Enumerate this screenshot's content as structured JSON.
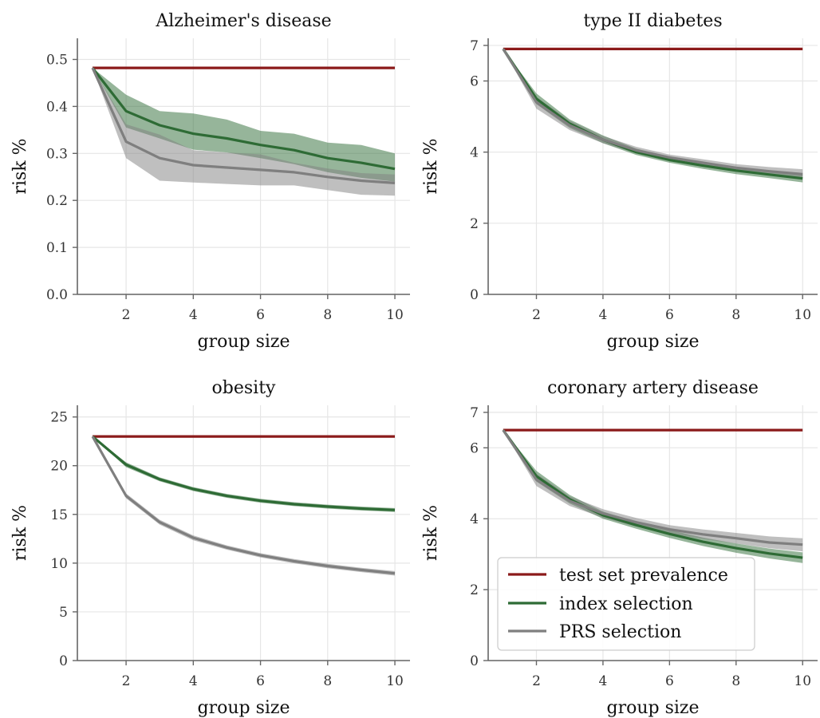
{
  "chart_data": [
    {
      "type": "line",
      "title": "Alzheimer's disease",
      "xlabel": "group size",
      "ylabel": "risk %",
      "xlim": [
        0.55,
        10.45
      ],
      "ylim": [
        0.0,
        0.545
      ],
      "xticks": [
        2,
        4,
        6,
        8,
        10
      ],
      "yticks": [
        0.0,
        0.1,
        0.2,
        0.3,
        0.4,
        0.5
      ],
      "ytick_labels": [
        "0.0",
        "0.1",
        "0.2",
        "0.3",
        "0.4",
        "0.5"
      ],
      "grid": true,
      "x": [
        1,
        2,
        3,
        4,
        5,
        6,
        7,
        8,
        9,
        10
      ],
      "series": [
        {
          "name": "test set prevalence",
          "color": "#8b1a1a",
          "values": [
            0.482,
            0.482,
            0.482,
            0.482,
            0.482,
            0.482,
            0.482,
            0.482,
            0.482,
            0.482
          ]
        },
        {
          "name": "index selection",
          "color": "#2e6b35",
          "values": [
            0.482,
            0.39,
            0.36,
            0.342,
            0.332,
            0.318,
            0.307,
            0.29,
            0.28,
            0.267
          ],
          "lower": [
            0.482,
            0.355,
            0.332,
            0.308,
            0.302,
            0.29,
            0.277,
            0.26,
            0.248,
            0.24
          ],
          "upper": [
            0.482,
            0.425,
            0.39,
            0.385,
            0.372,
            0.348,
            0.342,
            0.323,
            0.318,
            0.3
          ]
        },
        {
          "name": "PRS selection",
          "color": "#7f7f7f",
          "values": [
            0.482,
            0.325,
            0.29,
            0.275,
            0.27,
            0.265,
            0.26,
            0.25,
            0.242,
            0.237
          ],
          "lower": [
            0.482,
            0.29,
            0.242,
            0.238,
            0.235,
            0.232,
            0.232,
            0.222,
            0.212,
            0.21
          ],
          "upper": [
            0.482,
            0.362,
            0.34,
            0.307,
            0.302,
            0.298,
            0.28,
            0.268,
            0.258,
            0.255
          ]
        }
      ]
    },
    {
      "type": "line",
      "title": "type II diabetes",
      "xlabel": "group size",
      "ylabel": "risk %",
      "xlim": [
        0.55,
        10.45
      ],
      "ylim": [
        0.0,
        7.2
      ],
      "xticks": [
        2,
        4,
        6,
        8,
        10
      ],
      "yticks": [
        0,
        2,
        4,
        6,
        7
      ],
      "ytick_labels": [
        "0",
        "2",
        "4",
        "6",
        "7"
      ],
      "grid": true,
      "x": [
        1,
        2,
        3,
        4,
        5,
        6,
        7,
        8,
        9,
        10
      ],
      "series": [
        {
          "name": "test set prevalence",
          "color": "#8b1a1a",
          "values": [
            6.9,
            6.9,
            6.9,
            6.9,
            6.9,
            6.9,
            6.9,
            6.9,
            6.9,
            6.9
          ]
        },
        {
          "name": "index selection",
          "color": "#2e6b35",
          "values": [
            6.9,
            5.5,
            4.8,
            4.35,
            4.0,
            3.78,
            3.62,
            3.48,
            3.37,
            3.26
          ],
          "lower": [
            6.9,
            5.35,
            4.68,
            4.25,
            3.92,
            3.7,
            3.53,
            3.38,
            3.27,
            3.15
          ],
          "upper": [
            6.9,
            5.65,
            4.92,
            4.47,
            4.1,
            3.87,
            3.72,
            3.58,
            3.47,
            3.38
          ]
        },
        {
          "name": "PRS selection",
          "color": "#7f7f7f",
          "values": [
            6.9,
            5.4,
            4.75,
            4.35,
            4.05,
            3.85,
            3.7,
            3.56,
            3.46,
            3.38
          ],
          "lower": [
            6.9,
            5.22,
            4.62,
            4.25,
            3.97,
            3.78,
            3.63,
            3.49,
            3.39,
            3.28
          ],
          "upper": [
            6.9,
            5.55,
            4.88,
            4.45,
            4.15,
            3.93,
            3.8,
            3.66,
            3.58,
            3.52
          ]
        }
      ]
    },
    {
      "type": "line",
      "title": "obesity",
      "xlabel": "group size",
      "ylabel": "risk %",
      "xlim": [
        0.55,
        10.45
      ],
      "ylim": [
        0,
        26.2
      ],
      "xticks": [
        2,
        4,
        6,
        8,
        10
      ],
      "yticks": [
        0,
        5,
        10,
        15,
        20,
        25
      ],
      "ytick_labels": [
        "0",
        "5",
        "10",
        "15",
        "20",
        "25"
      ],
      "grid": true,
      "x": [
        1,
        2,
        3,
        4,
        5,
        6,
        7,
        8,
        9,
        10
      ],
      "series": [
        {
          "name": "test set prevalence",
          "color": "#8b1a1a",
          "values": [
            23.0,
            23.0,
            23.0,
            23.0,
            23.0,
            23.0,
            23.0,
            23.0,
            23.0,
            23.0
          ]
        },
        {
          "name": "index selection",
          "color": "#2e6b35",
          "values": [
            23.0,
            20.1,
            18.6,
            17.6,
            16.9,
            16.4,
            16.05,
            15.8,
            15.6,
            15.45
          ],
          "lower": [
            23.0,
            19.85,
            18.4,
            17.4,
            16.7,
            16.2,
            15.85,
            15.6,
            15.4,
            15.25
          ],
          "upper": [
            23.0,
            20.35,
            18.8,
            17.8,
            17.1,
            16.6,
            16.25,
            16.0,
            15.8,
            15.65
          ]
        },
        {
          "name": "PRS selection",
          "color": "#7f7f7f",
          "values": [
            23.0,
            16.9,
            14.2,
            12.6,
            11.6,
            10.8,
            10.2,
            9.7,
            9.3,
            8.95
          ],
          "lower": [
            23.0,
            16.65,
            13.95,
            12.35,
            11.38,
            10.58,
            9.98,
            9.48,
            9.08,
            8.72
          ],
          "upper": [
            23.0,
            17.15,
            14.45,
            12.85,
            11.82,
            11.02,
            10.42,
            9.92,
            9.52,
            9.18
          ]
        }
      ]
    },
    {
      "type": "line",
      "title": "coronary artery disease",
      "xlabel": "group size",
      "ylabel": "risk %",
      "xlim": [
        0.55,
        10.45
      ],
      "ylim": [
        0.0,
        7.2
      ],
      "xticks": [
        2,
        4,
        6,
        8,
        10
      ],
      "yticks": [
        0,
        2,
        4,
        6,
        7
      ],
      "ytick_labels": [
        "0",
        "2",
        "4",
        "6",
        "7"
      ],
      "grid": true,
      "legend": "bottom-left",
      "x": [
        1,
        2,
        3,
        4,
        5,
        6,
        7,
        8,
        9,
        10
      ],
      "series": [
        {
          "name": "test set prevalence",
          "color": "#8b1a1a",
          "values": [
            6.5,
            6.5,
            6.5,
            6.5,
            6.5,
            6.5,
            6.5,
            6.5,
            6.5,
            6.5
          ]
        },
        {
          "name": "index selection",
          "color": "#2e6b35",
          "values": [
            6.5,
            5.2,
            4.55,
            4.1,
            3.82,
            3.57,
            3.35,
            3.17,
            3.02,
            2.9
          ],
          "lower": [
            6.5,
            5.05,
            4.43,
            4.0,
            3.72,
            3.46,
            3.23,
            3.04,
            2.88,
            2.75
          ],
          "upper": [
            6.5,
            5.35,
            4.67,
            4.2,
            3.92,
            3.68,
            3.47,
            3.3,
            3.16,
            3.05
          ]
        },
        {
          "name": "PRS selection",
          "color": "#7f7f7f",
          "values": [
            6.5,
            5.1,
            4.5,
            4.15,
            3.9,
            3.7,
            3.56,
            3.45,
            3.33,
            3.27
          ],
          "lower": [
            6.5,
            4.92,
            4.36,
            4.03,
            3.78,
            3.58,
            3.43,
            3.3,
            3.17,
            3.08
          ],
          "upper": [
            6.5,
            5.27,
            4.63,
            4.27,
            4.02,
            3.82,
            3.7,
            3.6,
            3.5,
            3.45
          ]
        }
      ]
    }
  ],
  "legend": {
    "entries": [
      {
        "label": "test set prevalence",
        "color": "#8b1a1a"
      },
      {
        "label": "index selection",
        "color": "#2e6b35"
      },
      {
        "label": "PRS selection",
        "color": "#7f7f7f"
      }
    ]
  }
}
